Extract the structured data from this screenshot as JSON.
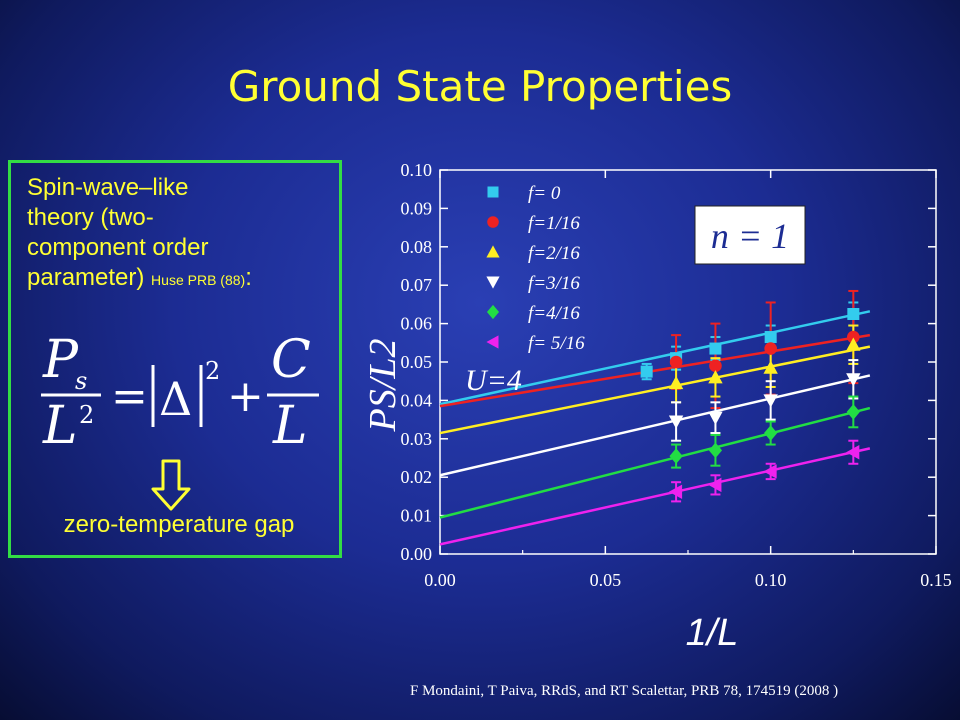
{
  "slide": {
    "title": "Ground State Properties",
    "theory_line1": "Spin-wave–like",
    "theory_line2": "theory (two-",
    "theory_line3": "component order",
    "theory_line4_main": "parameter)",
    "theory_citation": "Huse PRB (88)",
    "theory_colon": ":",
    "gap_label": "zero-temperature gap",
    "citation_text": "F Mondaini, T Paiva, RRdS, and RT Scalettar, PRB 78, 174519 (2008 )"
  },
  "formula": {
    "lhs_top": "P",
    "lhs_sub": "s",
    "lhs_bottom": "L",
    "lhs_bottom_exp": "2",
    "equals": "=",
    "delta": "Δ",
    "abs_exp": "2",
    "plus": "+",
    "rhs_top": "C",
    "rhs_bottom": "L"
  },
  "colors": {
    "title": "#ffff33",
    "box_border": "#33dd44",
    "f0": "#33ccee",
    "f1": "#ee2222",
    "f2": "#ffee22",
    "f3": "#ffffff",
    "f4": "#22dd44",
    "f5": "#ee22ee"
  },
  "chart_data": {
    "type": "scatter",
    "xlabel": "1/L",
    "ylabel": "PS/L2",
    "xlim": [
      0,
      0.15
    ],
    "ylim": [
      0,
      0.1
    ],
    "x_ticks": [
      "0.00",
      "0.05",
      "0.10",
      "0.15"
    ],
    "y_ticks": [
      "0.00",
      "0.01",
      "0.02",
      "0.03",
      "0.04",
      "0.05",
      "0.06",
      "0.07",
      "0.08",
      "0.09",
      "0.10"
    ],
    "annotation_n": "n = 1",
    "annotation_u": "U=4",
    "legend_position": "top-left",
    "series": [
      {
        "name": "f= 0",
        "marker": "square",
        "color": "#33ccee",
        "x": [
          0.0625,
          0.0714,
          0.0833,
          0.1,
          0.125
        ],
        "y": [
          0.0475,
          0.051,
          0.0535,
          0.0565,
          0.0625
        ],
        "err": [
          0.002,
          0.003,
          0.003,
          0.003,
          0.003
        ],
        "fit": [
          0.039,
          0.0632
        ]
      },
      {
        "name": "f=1/16",
        "marker": "circle",
        "color": "#ee2222",
        "x": [
          0.0714,
          0.0833,
          0.1,
          0.125
        ],
        "y": [
          0.05,
          0.049,
          0.0535,
          0.0565
        ],
        "err": [
          0.007,
          0.011,
          0.012,
          0.012
        ],
        "fit": [
          0.0385,
          0.057
        ]
      },
      {
        "name": "f=2/16",
        "marker": "triangle-up",
        "color": "#ffee22",
        "x": [
          0.0714,
          0.0833,
          0.1,
          0.125
        ],
        "y": [
          0.0445,
          0.046,
          0.0485,
          0.0545
        ],
        "err": [
          0.005,
          0.005,
          0.005,
          0.005
        ],
        "fit": [
          0.0315,
          0.054
        ]
      },
      {
        "name": "f=3/16",
        "marker": "triangle-down",
        "color": "#ffffff",
        "x": [
          0.0714,
          0.0833,
          0.1,
          0.125
        ],
        "y": [
          0.0345,
          0.0355,
          0.04,
          0.0455
        ],
        "err": [
          0.005,
          0.004,
          0.005,
          0.005
        ],
        "fit": [
          0.0205,
          0.0465
        ]
      },
      {
        "name": "f=4/16",
        "marker": "diamond",
        "color": "#22dd44",
        "x": [
          0.0714,
          0.0833,
          0.1,
          0.125
        ],
        "y": [
          0.0255,
          0.027,
          0.0315,
          0.037
        ],
        "err": [
          0.003,
          0.004,
          0.003,
          0.004
        ],
        "fit": [
          0.0095,
          0.038
        ]
      },
      {
        "name": "f= 5/16",
        "marker": "triangle-left",
        "color": "#ee22ee",
        "x": [
          0.0714,
          0.0833,
          0.1,
          0.125
        ],
        "y": [
          0.0162,
          0.018,
          0.0215,
          0.0265
        ],
        "err": [
          0.0025,
          0.0025,
          0.002,
          0.003
        ],
        "fit": [
          0.0025,
          0.0275
        ]
      }
    ]
  }
}
